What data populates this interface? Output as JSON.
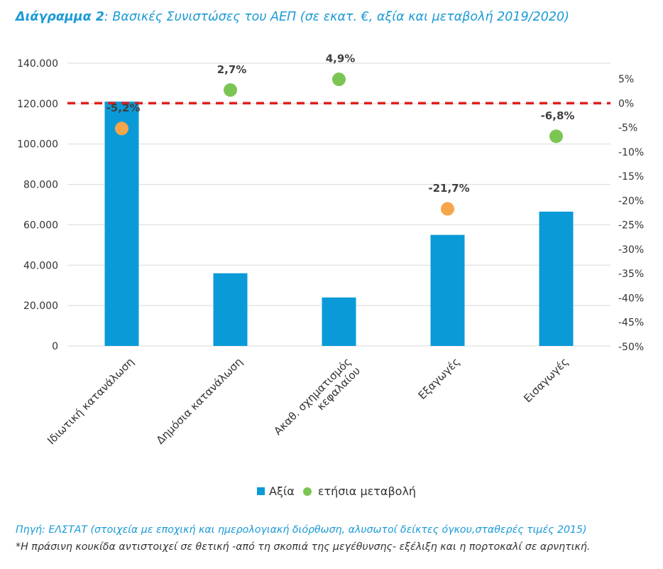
{
  "title": {
    "bold_part": "Διάγραμμα 2",
    "rest": ": Βασικές Συνιστώσες του ΑΕΠ (σε εκατ. €, αξία και μεταβολή 2019/2020)"
  },
  "colors": {
    "accent": "#1b9ad6",
    "bar": "#0b9ad8",
    "positive": "#7cc553",
    "negative": "#f5a64a",
    "zero_line": "#e0201f"
  },
  "chart_data": {
    "type": "bar",
    "categories": [
      [
        "Ιδιωτική κατανάλωση"
      ],
      [
        "Δημόσια κατανάλωση"
      ],
      [
        "Ακαθ. σχηματισμός",
        "κεφαλαίου"
      ],
      [
        "Εξαγωγές"
      ],
      [
        "Εισαγωγές"
      ]
    ],
    "series": [
      {
        "name": "Αξία",
        "axis": "left",
        "type": "bar",
        "values": [
          121000,
          36000,
          24000,
          55000,
          66500
        ]
      },
      {
        "name": "ετήσια μεταβολή",
        "axis": "right",
        "type": "scatter",
        "values": [
          -5.2,
          2.7,
          4.9,
          -21.7,
          -6.8
        ],
        "labels": [
          "-5,2%",
          "2,7%",
          "4,9%",
          "-21,7%",
          "-6,8%"
        ],
        "point_colors": [
          "negative",
          "positive",
          "positive",
          "negative",
          "positive"
        ]
      }
    ],
    "left_axis": {
      "ylim": [
        0,
        140000
      ],
      "ticks": [
        "0",
        "20.000",
        "40.000",
        "60.000",
        "80.000",
        "100.000",
        "120.000",
        "140.000"
      ]
    },
    "right_axis": {
      "ylim": [
        -50,
        5
      ],
      "ticks": [
        "-50%",
        "-45%",
        "-40%",
        "-35%",
        "-30%",
        "-25%",
        "-20%",
        "-15%",
        "-10%",
        "-5%",
        "0%",
        "5%"
      ]
    },
    "reference_line": {
      "axis": "right",
      "value": 0,
      "style": "dashed"
    }
  },
  "legend": {
    "bar_label": "Αξία",
    "dot_label": "ετήσια μεταβολή"
  },
  "source": "Πηγή: ΕΛΣΤΑΤ (στοιχεία με εποχική και ημερολογιακή διόρθωση, αλυσωτοί δείκτες όγκου,σταθερές τιμές 2015)",
  "note": "*Η πράσινη κουκίδα αντιστοιχεί σε θετική -από τη σκοπιά της μεγέθυνσης- εξέλιξη και η πορτοκαλί σε αρνητική."
}
